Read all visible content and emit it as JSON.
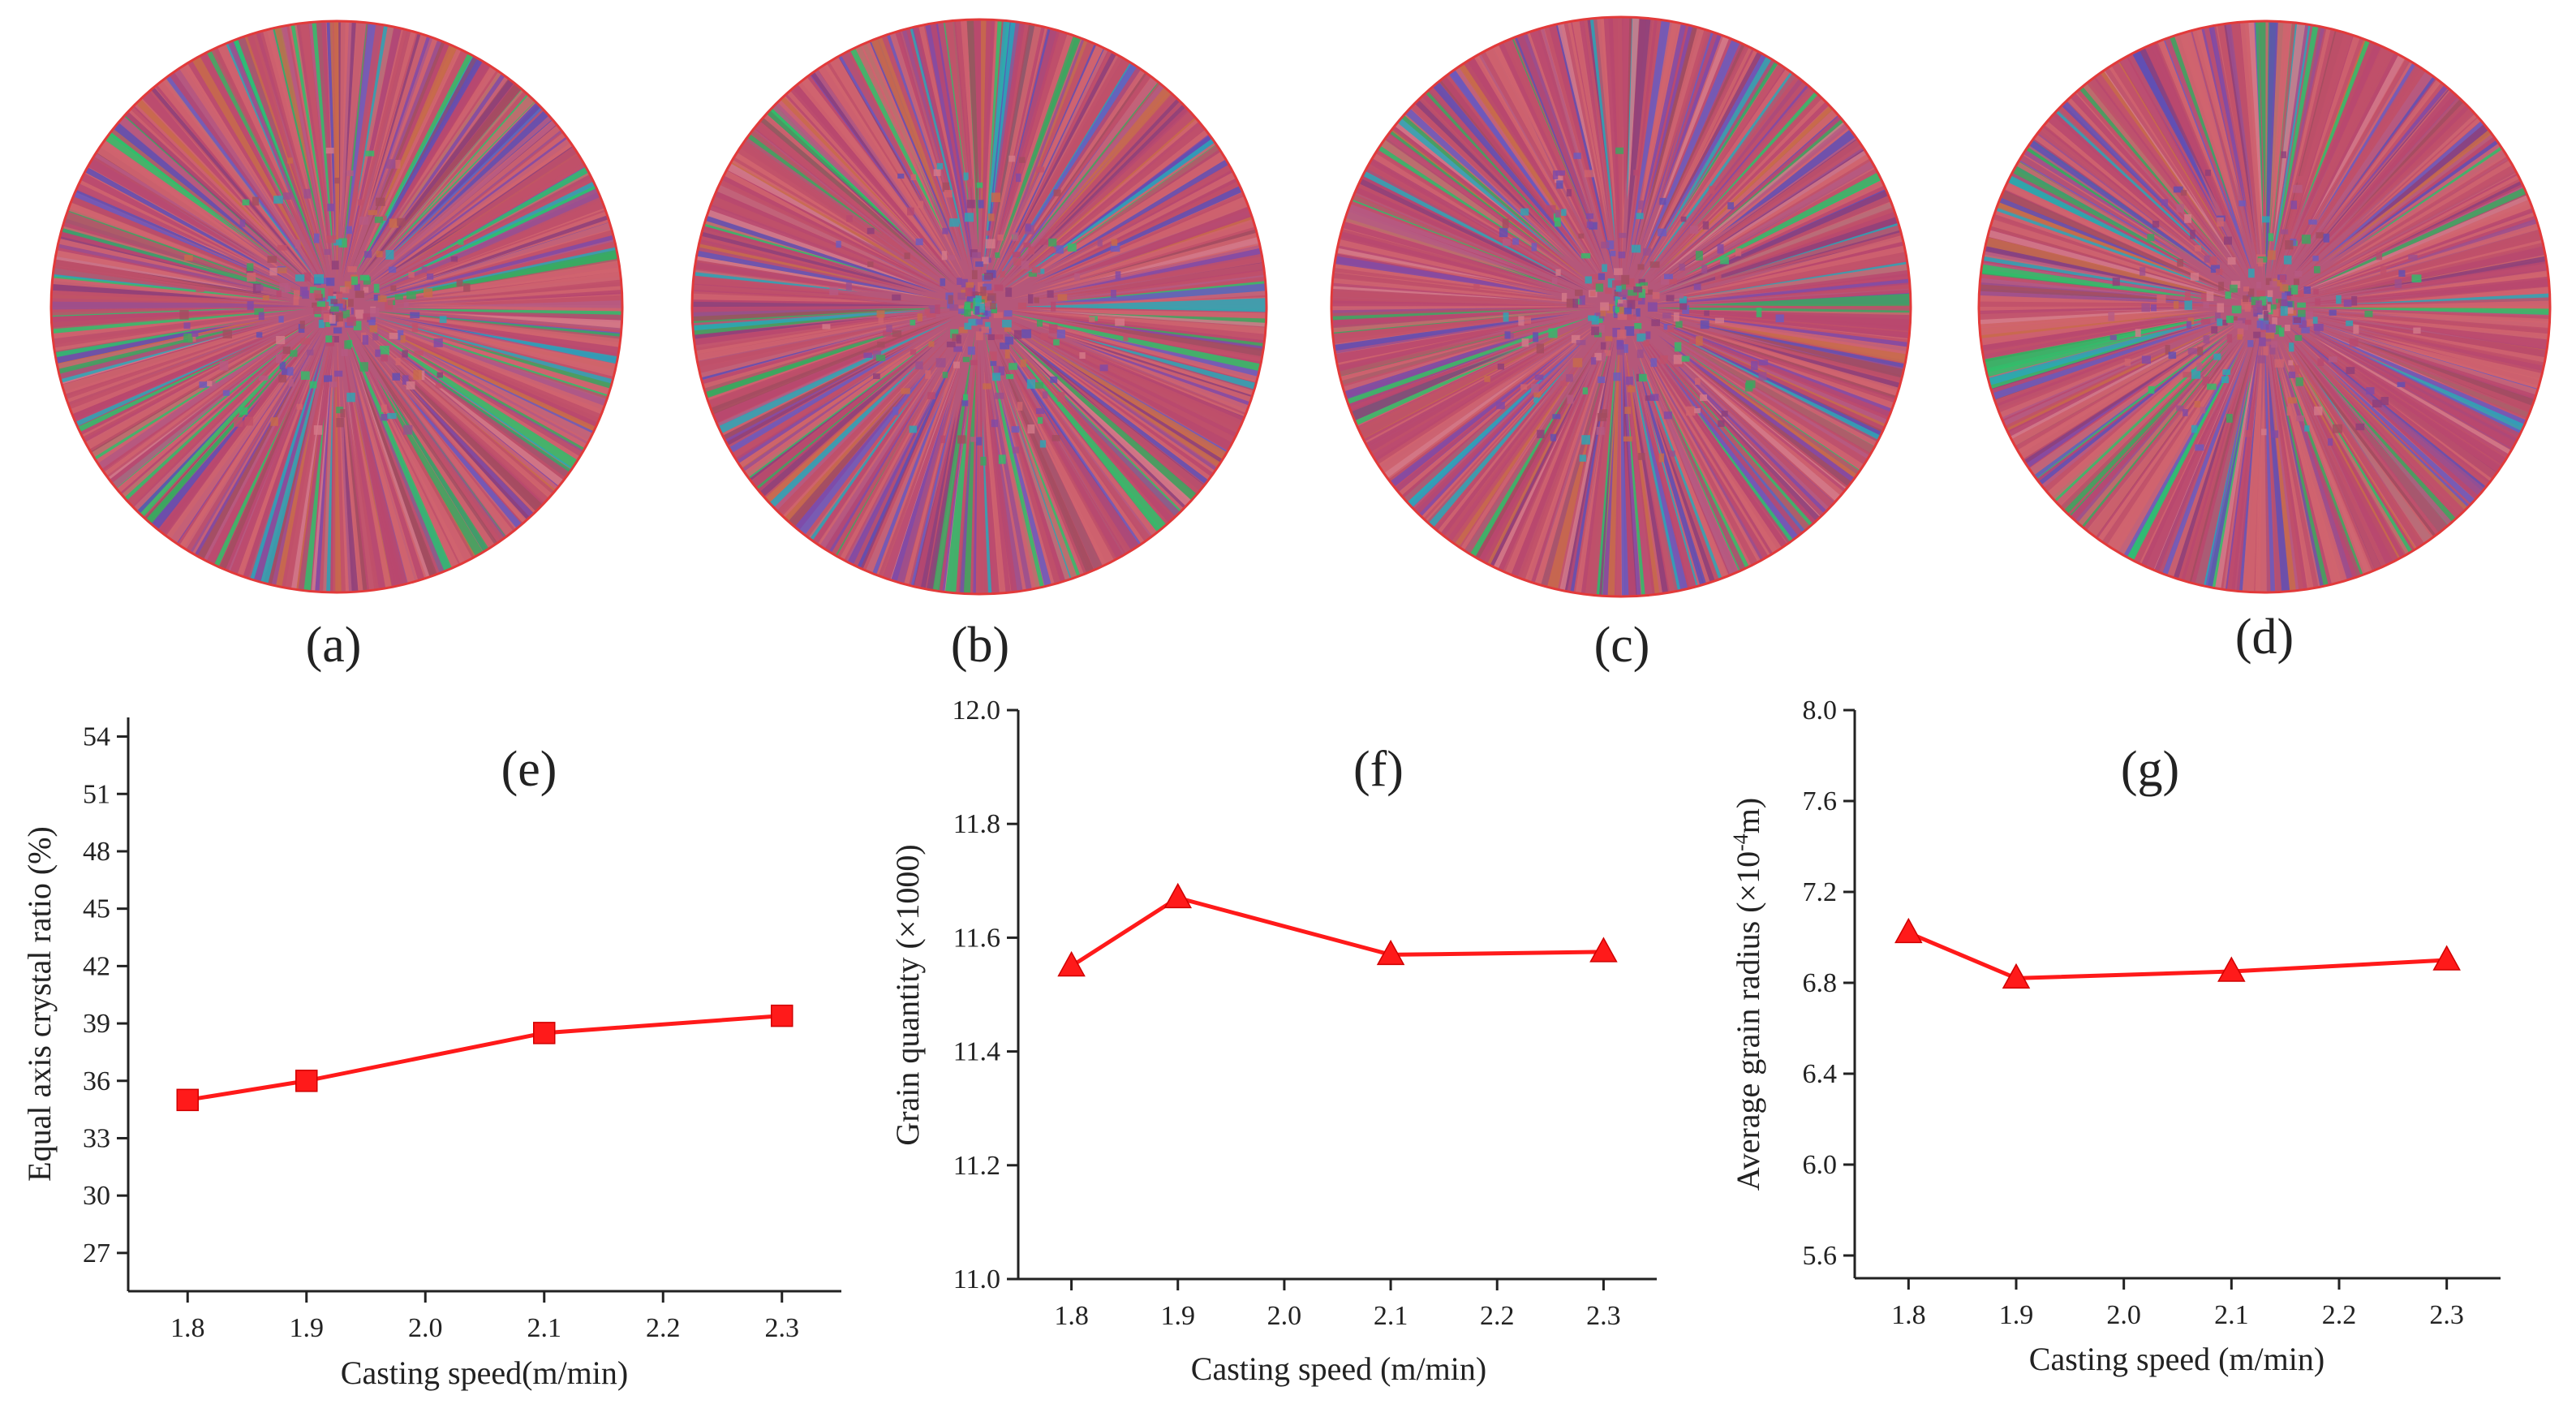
{
  "panels_top": [
    {
      "tag": "(a)"
    },
    {
      "tag": "(b)"
    },
    {
      "tag": "(c)"
    },
    {
      "tag": "(d)"
    }
  ],
  "grain_map_colors": [
    "#c0506a",
    "#d0646e",
    "#b8486f",
    "#9a4f8f",
    "#7f4aa8",
    "#5f4fb5",
    "#3aa85f",
    "#2fbf6a",
    "#2aa7b7",
    "#c86b4a",
    "#b65a83",
    "#8d3f7a",
    "#d47a8a",
    "#6a5bc0",
    "#a24c5f"
  ],
  "chart_data": [
    {
      "id": "e",
      "type": "line",
      "tag": "(e)",
      "title": "",
      "xlabel": "Casting speed(m/min)",
      "ylabel": "Equal axis crystal ratio (%)",
      "x": [
        1.8,
        1.9,
        2.1,
        2.3
      ],
      "values": [
        35.0,
        36.0,
        38.5,
        39.4
      ],
      "marker": "square",
      "color": "#ff1a1a",
      "xlim": [
        1.75,
        2.35
      ],
      "xticks": [
        1.8,
        1.9,
        2.0,
        2.1,
        2.2,
        2.3
      ],
      "xtick_labels": [
        "1.8",
        "1.9",
        "2.0",
        "2.1",
        "2.2",
        "2.3"
      ],
      "ylim": [
        25,
        55
      ],
      "yticks": [
        27,
        30,
        33,
        36,
        39,
        42,
        45,
        48,
        51,
        54
      ],
      "ytick_labels": [
        "27",
        "30",
        "33",
        "36",
        "39",
        "42",
        "45",
        "48",
        "51",
        "54"
      ]
    },
    {
      "id": "f",
      "type": "line",
      "tag": "(f)",
      "title": "",
      "xlabel": "Casting speed (m/min)",
      "ylabel": "Grain quantity (×1000)",
      "x": [
        1.8,
        1.9,
        2.1,
        2.3
      ],
      "values": [
        11.55,
        11.67,
        11.57,
        11.575
      ],
      "marker": "triangle",
      "color": "#ff1a1a",
      "xlim": [
        1.75,
        2.35
      ],
      "xticks": [
        1.8,
        1.9,
        2.0,
        2.1,
        2.2,
        2.3
      ],
      "xtick_labels": [
        "1.8",
        "1.9",
        "2.0",
        "2.1",
        "2.2",
        "2.3"
      ],
      "ylim": [
        11.0,
        12.0
      ],
      "yticks": [
        11.0,
        11.2,
        11.4,
        11.6,
        11.8,
        12.0
      ],
      "ytick_labels": [
        "11.0",
        "11.2",
        "11.4",
        "11.6",
        "11.8",
        "12.0"
      ]
    },
    {
      "id": "g",
      "type": "line",
      "tag": "(g)",
      "title": "",
      "xlabel": "Casting speed (m/min)",
      "ylabel_pre": "Average grain radius (×10",
      "ylabel_sup": "-4",
      "ylabel_post": "m)",
      "x": [
        1.8,
        1.9,
        2.1,
        2.3
      ],
      "values": [
        7.02,
        6.82,
        6.85,
        6.9
      ],
      "marker": "triangle",
      "color": "#ff1a1a",
      "xlim": [
        1.75,
        2.35
      ],
      "xticks": [
        1.8,
        1.9,
        2.0,
        2.1,
        2.2,
        2.3
      ],
      "xtick_labels": [
        "1.8",
        "1.9",
        "2.0",
        "2.1",
        "2.2",
        "2.3"
      ],
      "ylim": [
        5.5,
        8.0
      ],
      "yticks": [
        5.6,
        6.0,
        6.4,
        6.8,
        7.2,
        7.6,
        8.0
      ],
      "ytick_labels": [
        "5.6",
        "6.0",
        "6.4",
        "6.8",
        "7.2",
        "7.6",
        "8.0"
      ]
    }
  ]
}
